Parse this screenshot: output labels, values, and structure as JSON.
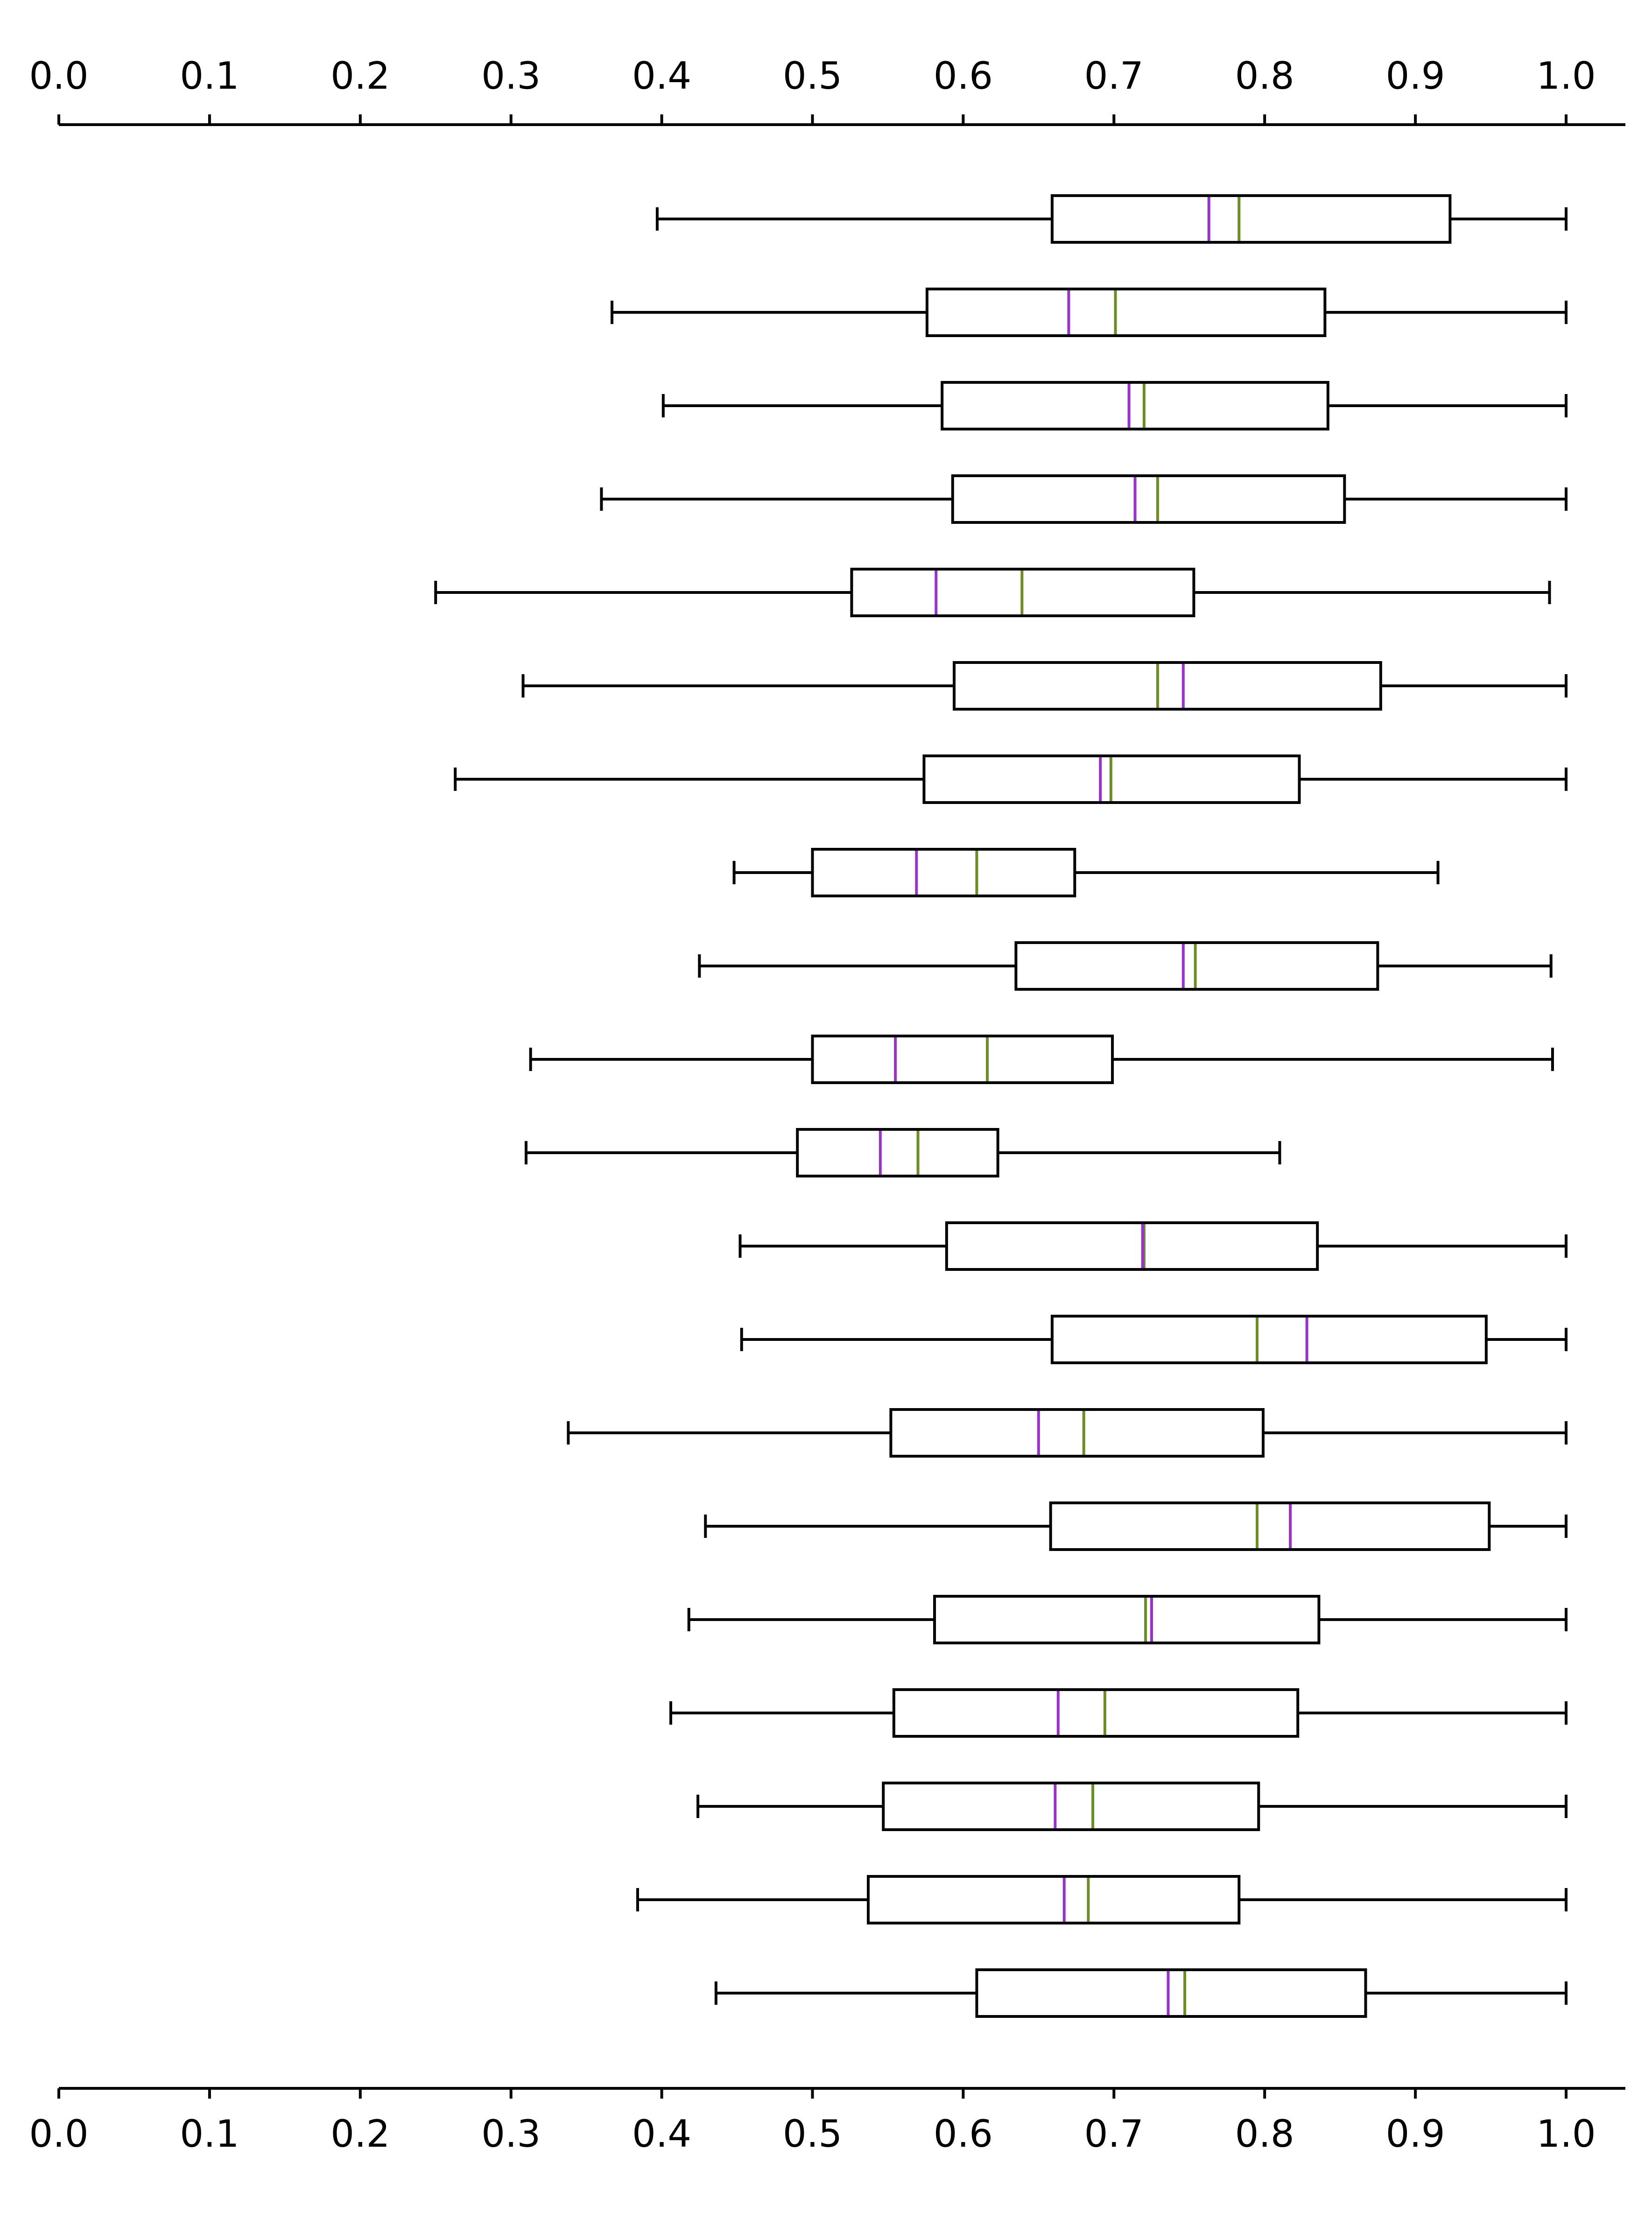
{
  "chart_data": {
    "type": "boxplot",
    "orientation": "horizontal",
    "xlim": [
      0.0,
      1.04
    ],
    "ticks": [
      0.0,
      0.1,
      0.2,
      0.3,
      0.4,
      0.5,
      0.6,
      0.7,
      0.8,
      0.9,
      1.0
    ],
    "tick_labels": [
      "0.0",
      "0.1",
      "0.2",
      "0.3",
      "0.4",
      "0.5",
      "0.6",
      "0.7",
      "0.8",
      "0.9",
      "1.0"
    ],
    "axes": [
      "top",
      "bottom"
    ],
    "grid": false,
    "colors": {
      "box": "#000000",
      "median": "#6b8e23",
      "mean": "#9932cc"
    },
    "boxes": [
      {
        "whisker_low": 0.397,
        "q1": 0.659,
        "median": 0.783,
        "mean": 0.763,
        "q3": 0.923,
        "whisker_high": 1.0
      },
      {
        "whisker_low": 0.367,
        "q1": 0.576,
        "median": 0.701,
        "mean": 0.67,
        "q3": 0.84,
        "whisker_high": 1.0
      },
      {
        "whisker_low": 0.401,
        "q1": 0.586,
        "median": 0.72,
        "mean": 0.71,
        "q3": 0.842,
        "whisker_high": 1.0
      },
      {
        "whisker_low": 0.36,
        "q1": 0.593,
        "median": 0.729,
        "mean": 0.714,
        "q3": 0.853,
        "whisker_high": 1.0
      },
      {
        "whisker_low": 0.25,
        "q1": 0.526,
        "median": 0.639,
        "mean": 0.582,
        "q3": 0.753,
        "whisker_high": 0.989
      },
      {
        "whisker_low": 0.308,
        "q1": 0.594,
        "median": 0.729,
        "mean": 0.746,
        "q3": 0.877,
        "whisker_high": 1.0
      },
      {
        "whisker_low": 0.263,
        "q1": 0.574,
        "median": 0.698,
        "mean": 0.691,
        "q3": 0.823,
        "whisker_high": 1.0
      },
      {
        "whisker_low": 0.448,
        "q1": 0.5,
        "median": 0.609,
        "mean": 0.569,
        "q3": 0.674,
        "whisker_high": 0.915
      },
      {
        "whisker_low": 0.425,
        "q1": 0.635,
        "median": 0.754,
        "mean": 0.746,
        "q3": 0.875,
        "whisker_high": 0.99
      },
      {
        "whisker_low": 0.313,
        "q1": 0.5,
        "median": 0.616,
        "mean": 0.555,
        "q3": 0.699,
        "whisker_high": 0.991
      },
      {
        "whisker_low": 0.31,
        "q1": 0.49,
        "median": 0.57,
        "mean": 0.545,
        "q3": 0.623,
        "whisker_high": 0.81
      },
      {
        "whisker_low": 0.452,
        "q1": 0.589,
        "median": 0.72,
        "mean": 0.719,
        "q3": 0.835,
        "whisker_high": 1.0
      },
      {
        "whisker_low": 0.453,
        "q1": 0.659,
        "median": 0.795,
        "mean": 0.828,
        "q3": 0.947,
        "whisker_high": 1.0
      },
      {
        "whisker_low": 0.338,
        "q1": 0.552,
        "median": 0.68,
        "mean": 0.65,
        "q3": 0.799,
        "whisker_high": 1.0
      },
      {
        "whisker_low": 0.429,
        "q1": 0.658,
        "median": 0.795,
        "mean": 0.817,
        "q3": 0.949,
        "whisker_high": 1.0
      },
      {
        "whisker_low": 0.418,
        "q1": 0.581,
        "median": 0.721,
        "mean": 0.725,
        "q3": 0.836,
        "whisker_high": 1.0
      },
      {
        "whisker_low": 0.406,
        "q1": 0.554,
        "median": 0.694,
        "mean": 0.663,
        "q3": 0.822,
        "whisker_high": 1.0
      },
      {
        "whisker_low": 0.424,
        "q1": 0.547,
        "median": 0.686,
        "mean": 0.661,
        "q3": 0.796,
        "whisker_high": 1.0
      },
      {
        "whisker_low": 0.384,
        "q1": 0.537,
        "median": 0.683,
        "mean": 0.667,
        "q3": 0.783,
        "whisker_high": 1.0
      },
      {
        "whisker_low": 0.436,
        "q1": 0.609,
        "median": 0.747,
        "mean": 0.736,
        "q3": 0.867,
        "whisker_high": 1.0
      }
    ]
  }
}
